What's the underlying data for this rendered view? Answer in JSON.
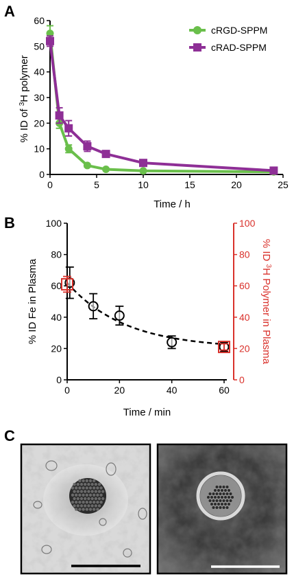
{
  "panels": {
    "a_letter": "A",
    "b_letter": "B",
    "c_letter": "C"
  },
  "chart_data": [
    {
      "type": "line",
      "panel": "A",
      "ylabel_parts": [
        "% ID of ",
        "3",
        "H polymer"
      ],
      "xlabel": "Time / h",
      "xlim": [
        0,
        25
      ],
      "ylim": [
        0,
        60
      ],
      "xticks": [
        "0",
        "5",
        "10",
        "15",
        "20",
        "25"
      ],
      "yticks": [
        "0",
        "10",
        "20",
        "30",
        "40",
        "50",
        "60"
      ],
      "legend_position": "top-right",
      "series": [
        {
          "name": "cRGD-SPPM",
          "color": "#6abf4b",
          "marker": "circle",
          "points": [
            {
              "x": 0,
              "y": 55,
              "err": 3
            },
            {
              "x": 1,
              "y": 20,
              "err": 2
            },
            {
              "x": 2,
              "y": 10,
              "err": 1.5
            },
            {
              "x": 4,
              "y": 3.5,
              "err": 0.6
            },
            {
              "x": 6,
              "y": 2,
              "err": 0.4
            },
            {
              "x": 10,
              "y": 1.4,
              "err": 0.3
            },
            {
              "x": 24,
              "y": 1,
              "err": 0.2
            }
          ]
        },
        {
          "name": "cRAD-SPPM",
          "color": "#8e2f96",
          "marker": "square",
          "points": [
            {
              "x": 0,
              "y": 52,
              "err": 2
            },
            {
              "x": 1,
              "y": 23,
              "err": 3
            },
            {
              "x": 2,
              "y": 18,
              "err": 3
            },
            {
              "x": 4,
              "y": 11,
              "err": 2
            },
            {
              "x": 6,
              "y": 8,
              "err": 1.2
            },
            {
              "x": 10,
              "y": 4.5,
              "err": 0.8
            },
            {
              "x": 24,
              "y": 1.5,
              "err": 0.3
            }
          ]
        }
      ]
    },
    {
      "type": "scatter",
      "panel": "B",
      "xlabel": "Time / min",
      "ylabel_left": "% ID Fe in Plasma",
      "ylabel_right_parts": [
        "% ID ",
        "3",
        "H Polymer in Plasma"
      ],
      "xlim": [
        0,
        60
      ],
      "ylim_left": [
        0,
        100
      ],
      "ylim_right": [
        0,
        100
      ],
      "xticks": [
        "0",
        "20",
        "40",
        "60"
      ],
      "yticks_left": [
        "0",
        "20",
        "40",
        "60",
        "80",
        "100"
      ],
      "yticks_right": [
        "0",
        "20",
        "40",
        "60",
        "80",
        "100"
      ],
      "right_axis_color": "#d9302a",
      "series": [
        {
          "axis": "left",
          "marker": "open-circle",
          "color": "#000000",
          "points": [
            {
              "x": 1,
              "y": 62,
              "err": 10
            },
            {
              "x": 10,
              "y": 47,
              "err": 8
            },
            {
              "x": 20,
              "y": 41,
              "err": 6
            },
            {
              "x": 40,
              "y": 24,
              "err": 4
            },
            {
              "x": 60,
              "y": 21,
              "err": 3
            }
          ]
        },
        {
          "axis": "right",
          "marker": "open-square",
          "color": "#d9302a",
          "points": [
            {
              "x": 0,
              "y": 61,
              "err": 5
            },
            {
              "x": 60,
              "y": 21,
              "err": 2
            }
          ]
        }
      ],
      "fit_line": {
        "style": "dashed",
        "color": "#000000"
      }
    }
  ],
  "micrographs": [
    {
      "name": "left-micrograph",
      "tone": "light",
      "scale_bar_color": "#000000"
    },
    {
      "name": "right-micrograph",
      "tone": "dark",
      "scale_bar_color": "#ffffff"
    }
  ]
}
